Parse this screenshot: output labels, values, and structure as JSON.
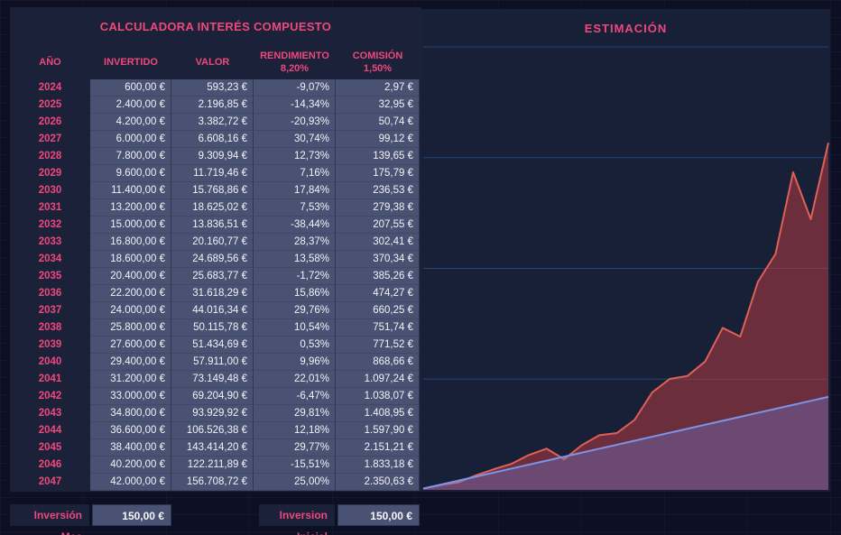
{
  "table": {
    "title": "CALCULADORA INTERÉS COMPUESTO",
    "columns": {
      "year": "AÑO",
      "invested": "INVERTIDO",
      "value": "VALOR",
      "yield": "RENDIMIENTO",
      "yield_rate": "8,20%",
      "fee": "COMISIÓN",
      "fee_rate": "1,50%"
    },
    "rows": [
      {
        "year": "2024",
        "invested": "600,00 €",
        "value": "593,23 €",
        "yield": "-9,07%",
        "fee": "2,97 €"
      },
      {
        "year": "2025",
        "invested": "2.400,00 €",
        "value": "2.196,85 €",
        "yield": "-14,34%",
        "fee": "32,95 €"
      },
      {
        "year": "2026",
        "invested": "4.200,00 €",
        "value": "3.382,72 €",
        "yield": "-20,93%",
        "fee": "50,74 €"
      },
      {
        "year": "2027",
        "invested": "6.000,00 €",
        "value": "6.608,16 €",
        "yield": "30,74%",
        "fee": "99,12 €"
      },
      {
        "year": "2028",
        "invested": "7.800,00 €",
        "value": "9.309,94 €",
        "yield": "12,73%",
        "fee": "139,65 €"
      },
      {
        "year": "2029",
        "invested": "9.600,00 €",
        "value": "11.719,46 €",
        "yield": "7,16%",
        "fee": "175,79 €"
      },
      {
        "year": "2030",
        "invested": "11.400,00 €",
        "value": "15.768,86 €",
        "yield": "17,84%",
        "fee": "236,53 €"
      },
      {
        "year": "2031",
        "invested": "13.200,00 €",
        "value": "18.625,02 €",
        "yield": "7,53%",
        "fee": "279,38 €"
      },
      {
        "year": "2032",
        "invested": "15.000,00 €",
        "value": "13.836,51 €",
        "yield": "-38,44%",
        "fee": "207,55 €"
      },
      {
        "year": "2033",
        "invested": "16.800,00 €",
        "value": "20.160,77 €",
        "yield": "28,37%",
        "fee": "302,41 €"
      },
      {
        "year": "2034",
        "invested": "18.600,00 €",
        "value": "24.689,56 €",
        "yield": "13,58%",
        "fee": "370,34 €"
      },
      {
        "year": "2035",
        "invested": "20.400,00 €",
        "value": "25.683,77 €",
        "yield": "-1,72%",
        "fee": "385,26 €"
      },
      {
        "year": "2036",
        "invested": "22.200,00 €",
        "value": "31.618,29 €",
        "yield": "15,86%",
        "fee": "474,27 €"
      },
      {
        "year": "2037",
        "invested": "24.000,00 €",
        "value": "44.016,34 €",
        "yield": "29,76%",
        "fee": "660,25 €"
      },
      {
        "year": "2038",
        "invested": "25.800,00 €",
        "value": "50.115,78 €",
        "yield": "10,54%",
        "fee": "751,74 €"
      },
      {
        "year": "2039",
        "invested": "27.600,00 €",
        "value": "51.434,69 €",
        "yield": "0,53%",
        "fee": "771,52 €"
      },
      {
        "year": "2040",
        "invested": "29.400,00 €",
        "value": "57.911,00 €",
        "yield": "9,96%",
        "fee": "868,66 €"
      },
      {
        "year": "2041",
        "invested": "31.200,00 €",
        "value": "73.149,48 €",
        "yield": "22,01%",
        "fee": "1.097,24 €"
      },
      {
        "year": "2042",
        "invested": "33.000,00 €",
        "value": "69.204,90 €",
        "yield": "-6,47%",
        "fee": "1.038,07 €"
      },
      {
        "year": "2043",
        "invested": "34.800,00 €",
        "value": "93.929,92 €",
        "yield": "29,81%",
        "fee": "1.408,95 €"
      },
      {
        "year": "2044",
        "invested": "36.600,00 €",
        "value": "106.526,38 €",
        "yield": "12,18%",
        "fee": "1.597,90 €"
      },
      {
        "year": "2045",
        "invested": "38.400,00 €",
        "value": "143.414,20 €",
        "yield": "29,77%",
        "fee": "2.151,21 €"
      },
      {
        "year": "2046",
        "invested": "40.200,00 €",
        "value": "122.211,89 €",
        "yield": "-15,51%",
        "fee": "1.833,18 €"
      },
      {
        "year": "2047",
        "invested": "42.000,00 €",
        "value": "156.708,72 €",
        "yield": "25,00%",
        "fee": "2.350,63 €"
      }
    ]
  },
  "inputs": {
    "monthly_label": "Inversión Mes",
    "monthly_value": "150,00 €",
    "initial_label": "Inversion Inicial",
    "initial_value": "150,00 €"
  },
  "chart": {
    "title": "ESTIMACIÓN"
  },
  "chart_data": {
    "type": "area",
    "title": "ESTIMACIÓN",
    "x": [
      2024,
      2025,
      2026,
      2027,
      2028,
      2029,
      2030,
      2031,
      2032,
      2033,
      2034,
      2035,
      2036,
      2037,
      2038,
      2039,
      2040,
      2041,
      2042,
      2043,
      2044,
      2045,
      2046,
      2047
    ],
    "series": [
      {
        "name": "VALOR",
        "stroke": "#de6156",
        "fill": "rgba(203,60,68,0.47)",
        "values": [
          593.23,
          2196.85,
          3382.72,
          6608.16,
          9309.94,
          11719.46,
          15768.86,
          18625.02,
          13836.51,
          20160.77,
          24689.56,
          25683.77,
          31618.29,
          44016.34,
          50115.78,
          51434.69,
          57911.0,
          73149.48,
          69204.9,
          93929.92,
          106526.38,
          143414.2,
          122211.89,
          156708.72
        ]
      },
      {
        "name": "INVERTIDO",
        "stroke": "#7b93e8",
        "fill": "rgba(110,130,225,0.33)",
        "values": [
          600,
          2400,
          4200,
          6000,
          7800,
          9600,
          11400,
          13200,
          15000,
          16800,
          18600,
          20400,
          22200,
          24000,
          25800,
          27600,
          29400,
          31200,
          33000,
          34800,
          36600,
          38400,
          40200,
          42000
        ]
      }
    ],
    "ylim": [
      0,
      200000
    ],
    "grid_interval": 50000,
    "grid": true,
    "legend": false,
    "xlabel": "",
    "ylabel": "",
    "gridline_color": "#1f4973"
  },
  "colors": {
    "page_bg": "#0d1024",
    "panel_bg": "#1a2138",
    "chart_bg": "#172036",
    "cell_bg": "#4a5273",
    "accent_pink": "#ee487d",
    "text_light": "#f2f3f7"
  }
}
